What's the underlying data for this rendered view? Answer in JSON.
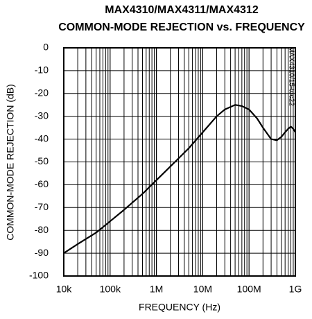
{
  "chart_data": {
    "type": "line",
    "title": "MAX4310/MAX4311/MAX4312",
    "subtitle": "COMMON-MODE REJECTION vs. FREQUENCY",
    "xlabel": "FREQUENCY (Hz)",
    "ylabel": "COMMON-MODE REJECTION (dB)",
    "annotation": "MAX4310/15-toc22",
    "xscale": "log",
    "grid": true,
    "color": "#000000",
    "x": [
      10000,
      20000,
      50000,
      100000,
      200000,
      500000,
      1000000,
      2000000,
      5000000,
      10000000,
      20000000,
      30000000,
      50000000,
      70000000,
      100000000,
      150000000,
      200000000,
      300000000,
      400000000,
      500000000,
      600000000,
      700000000,
      800000000,
      900000000,
      1000000000
    ],
    "values": [
      -90,
      -86,
      -81,
      -76,
      -71,
      -64,
      -58,
      -52,
      -44,
      -37,
      -30,
      -27,
      -25,
      -25.5,
      -27,
      -31,
      -35,
      -40,
      -40.5,
      -39,
      -37,
      -35.5,
      -34.5,
      -35.5,
      -37
    ],
    "xlim": [
      10000,
      1000000000
    ],
    "ylim": [
      -100,
      0
    ],
    "xticks": [
      {
        "value": 10000,
        "label": "10k"
      },
      {
        "value": 100000,
        "label": "100k"
      },
      {
        "value": 1000000,
        "label": "1M"
      },
      {
        "value": 10000000,
        "label": "10M"
      },
      {
        "value": 100000000,
        "label": "100M"
      },
      {
        "value": 1000000000,
        "label": "1G"
      }
    ],
    "xminorticks": [
      20000,
      30000,
      40000,
      50000,
      60000,
      70000,
      80000,
      90000,
      200000,
      300000,
      400000,
      500000,
      600000,
      700000,
      800000,
      900000,
      2000000,
      3000000,
      4000000,
      5000000,
      6000000,
      7000000,
      8000000,
      9000000,
      20000000,
      30000000,
      40000000,
      50000000,
      60000000,
      70000000,
      80000000,
      90000000,
      200000000,
      300000000,
      400000000,
      500000000,
      600000000,
      700000000,
      800000000,
      900000000
    ],
    "yticks": [
      0,
      -10,
      -20,
      -30,
      -40,
      -50,
      -60,
      -70,
      -80,
      -90,
      -100
    ]
  }
}
